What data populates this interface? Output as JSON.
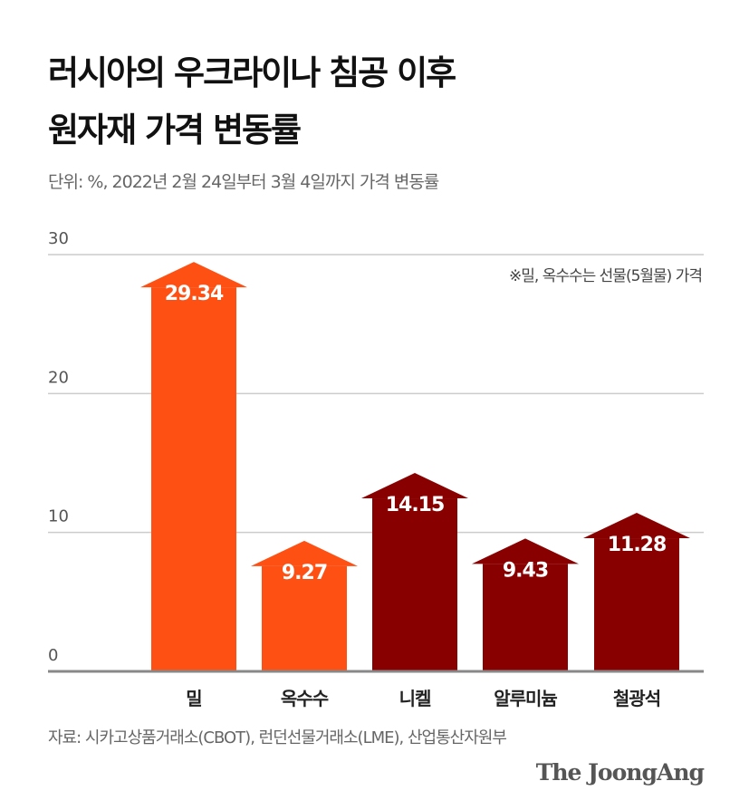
{
  "title_line1": "러시아의 우크라이나 침공 이후",
  "title_line2": "원자재 가격 변동률",
  "subtitle": "단위: %, 2022년 2월 24일부터 3월 4일까지 가격 변동률",
  "note": "※밀, 옥수수는 선물(5월물) 가격",
  "source": "자료: 시카고상품거래소(CBOT), 런던선물거래소(LME), 산업통산자원부",
  "logo": "The JoongAng",
  "colors": {
    "grain": "#FF5014",
    "metal": "#880000",
    "grid": "#cccccc",
    "axis": "#888888"
  },
  "chart_data": {
    "type": "bar",
    "categories": [
      "밀",
      "옥수수",
      "니켈",
      "알루미늄",
      "철광석"
    ],
    "values": [
      29.34,
      9.27,
      14.15,
      9.43,
      11.28
    ],
    "labels": [
      "29.34",
      "9.27",
      "14.15",
      "9.43",
      "11.28"
    ],
    "bar_colors": [
      "#FF5014",
      "#FF5014",
      "#880000",
      "#880000",
      "#880000"
    ],
    "yticks": [
      "0",
      "10",
      "20",
      "30"
    ],
    "ylim": [
      0,
      30
    ],
    "grid": true,
    "xlabel": "",
    "ylabel": ""
  }
}
